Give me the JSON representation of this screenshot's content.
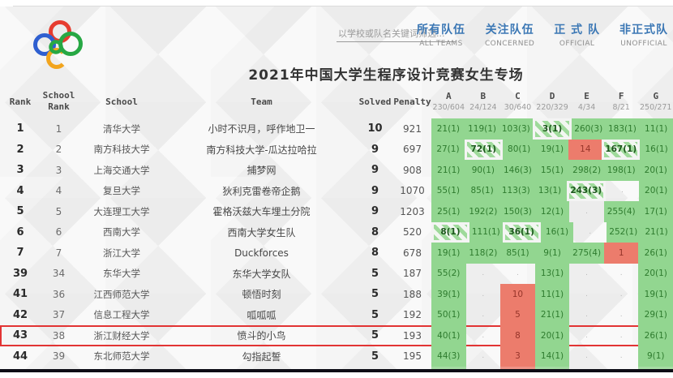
{
  "nav": {
    "search_placeholder": "以学校或队名关键词筛选...",
    "links": [
      {
        "zh": "所有队伍",
        "en": "ALL TEAMS"
      },
      {
        "zh": "关注队伍",
        "en": "CONCERNED"
      },
      {
        "zh": "正 式 队",
        "en": "OFFICIAL"
      },
      {
        "zh": "非正式队",
        "en": "UNOFFICIAL"
      }
    ]
  },
  "logo": {
    "name": "ccpc-rings-logo"
  },
  "title": "2021年中国大学生程序设计竞赛女生专场",
  "colors": {
    "accepted_green": "#92d690",
    "wrong_red": "#ec7c6c",
    "first_blood_stripe": "#9fda9b",
    "highlight_border": "#e23434",
    "link_blue": "#3c78b5",
    "logo_red": "#e63c2f",
    "logo_blue": "#2f5fd0",
    "logo_green": "#27a844",
    "logo_orange": "#f2a51e"
  },
  "table": {
    "headers": {
      "rank": "Rank",
      "school_rank": "School\nRank",
      "school": "School",
      "team": "Team",
      "solved": "Solved",
      "penalty": "Penalty"
    },
    "problems": [
      {
        "letter": "A",
        "stat": "230/604"
      },
      {
        "letter": "B",
        "stat": "24/124"
      },
      {
        "letter": "C",
        "stat": "30/640"
      },
      {
        "letter": "D",
        "stat": "220/329"
      },
      {
        "letter": "E",
        "stat": "4/34"
      },
      {
        "letter": "F",
        "stat": "8/21"
      },
      {
        "letter": "G",
        "stat": "250/271"
      }
    ],
    "rows": [
      {
        "rank": "1",
        "school_rank": "1",
        "school": "清华大学",
        "team": "小时不识月，呼作地卫一",
        "solved": "10",
        "penalty": "921",
        "cells": [
          {
            "t": "21(1)",
            "s": "ac"
          },
          {
            "t": "119(1)",
            "s": "ac"
          },
          {
            "t": "103(3)",
            "s": "ac"
          },
          {
            "t": "3(1)",
            "s": "fb"
          },
          {
            "t": "260(3)",
            "s": "ac"
          },
          {
            "t": "183(1)",
            "s": "ac"
          },
          {
            "t": "11(1)",
            "s": "ac"
          }
        ]
      },
      {
        "rank": "2",
        "school_rank": "2",
        "school": "南方科技大学",
        "team": "南方科技大学-瓜达拉哈拉",
        "solved": "9",
        "penalty": "697",
        "cells": [
          {
            "t": "27(1)",
            "s": "ac"
          },
          {
            "t": "72(1)",
            "s": "fb"
          },
          {
            "t": "80(1)",
            "s": "ac"
          },
          {
            "t": "19(1)",
            "s": "ac"
          },
          {
            "t": "14",
            "s": "wa"
          },
          {
            "t": "167(1)",
            "s": "fb"
          },
          {
            "t": "16(1)",
            "s": "ac"
          }
        ]
      },
      {
        "rank": "3",
        "school_rank": "3",
        "school": "上海交通大学",
        "team": "捕梦网",
        "solved": "9",
        "penalty": "908",
        "cells": [
          {
            "t": "21(1)",
            "s": "ac"
          },
          {
            "t": "90(1)",
            "s": "ac"
          },
          {
            "t": "146(3)",
            "s": "ac"
          },
          {
            "t": "15(1)",
            "s": "ac"
          },
          {
            "t": "298(2)",
            "s": "ac"
          },
          {
            "t": "198(1)",
            "s": "ac"
          },
          {
            "t": "20(1)",
            "s": "ac"
          }
        ]
      },
      {
        "rank": "4",
        "school_rank": "4",
        "school": "复旦大学",
        "team": "狄利克雷卷帝企鹅",
        "solved": "9",
        "penalty": "1070",
        "cells": [
          {
            "t": "55(1)",
            "s": "ac"
          },
          {
            "t": "85(1)",
            "s": "ac"
          },
          {
            "t": "113(3)",
            "s": "ac"
          },
          {
            "t": "13(1)",
            "s": "ac"
          },
          {
            "t": "243(3)",
            "s": "fb"
          },
          {
            "t": ".",
            "s": "none"
          },
          {
            "t": "20(1)",
            "s": "ac"
          }
        ]
      },
      {
        "rank": "5",
        "school_rank": "5",
        "school": "大连理工大学",
        "team": "霍格沃兹大车埋土分院",
        "solved": "9",
        "penalty": "1203",
        "cells": [
          {
            "t": "25(1)",
            "s": "ac"
          },
          {
            "t": "192(2)",
            "s": "ac"
          },
          {
            "t": "150(3)",
            "s": "ac"
          },
          {
            "t": "12(1)",
            "s": "ac"
          },
          {
            "t": ".",
            "s": "none"
          },
          {
            "t": "255(4)",
            "s": "ac"
          },
          {
            "t": "17(1)",
            "s": "ac"
          }
        ]
      },
      {
        "rank": "6",
        "school_rank": "6",
        "school": "西南大学",
        "team": "西南大学女生队",
        "solved": "8",
        "penalty": "520",
        "cells": [
          {
            "t": "8(1)",
            "s": "fb"
          },
          {
            "t": "111(1)",
            "s": "ac"
          },
          {
            "t": "36(1)",
            "s": "fb"
          },
          {
            "t": "16(1)",
            "s": "ac"
          },
          {
            "t": ".",
            "s": "none"
          },
          {
            "t": "252(1)",
            "s": "ac"
          },
          {
            "t": "21(1)",
            "s": "ac"
          }
        ]
      },
      {
        "rank": "7",
        "school_rank": "7",
        "school": "浙江大学",
        "team": "Duckforces",
        "solved": "8",
        "penalty": "678",
        "cells": [
          {
            "t": "19(1)",
            "s": "ac"
          },
          {
            "t": "118(2)",
            "s": "ac"
          },
          {
            "t": "85(1)",
            "s": "ac"
          },
          {
            "t": "9(1)",
            "s": "ac"
          },
          {
            "t": "275(4)",
            "s": "ac"
          },
          {
            "t": "1",
            "s": "wa"
          },
          {
            "t": "26(1)",
            "s": "ac"
          }
        ]
      },
      {
        "rank": "39",
        "school_rank": "34",
        "school": "东华大学",
        "team": "东华大学女队",
        "solved": "5",
        "penalty": "187",
        "cells": [
          {
            "t": "55(2)",
            "s": "ac"
          },
          {
            "t": ".",
            "s": "none"
          },
          {
            "t": ".",
            "s": "none"
          },
          {
            "t": "13(1)",
            "s": "ac"
          },
          {
            "t": ".",
            "s": "none"
          },
          {
            "t": ".",
            "s": "none"
          },
          {
            "t": "20(1)",
            "s": "ac"
          }
        ]
      },
      {
        "rank": "41",
        "school_rank": "36",
        "school": "江西师范大学",
        "team": "顿悟时刻",
        "solved": "5",
        "penalty": "188",
        "cells": [
          {
            "t": "39(1)",
            "s": "ac"
          },
          {
            "t": ".",
            "s": "none"
          },
          {
            "t": "10",
            "s": "wa"
          },
          {
            "t": "11(1)",
            "s": "ac"
          },
          {
            "t": ".",
            "s": "none"
          },
          {
            "t": ".",
            "s": "none"
          },
          {
            "t": "19(1)",
            "s": "ac"
          }
        ]
      },
      {
        "rank": "42",
        "school_rank": "37",
        "school": "信息工程大学",
        "team": "呱呱呱",
        "solved": "5",
        "penalty": "192",
        "cells": [
          {
            "t": "50(1)",
            "s": "ac"
          },
          {
            "t": ".",
            "s": "none"
          },
          {
            "t": "5",
            "s": "wa"
          },
          {
            "t": "21(1)",
            "s": "ac"
          },
          {
            "t": ".",
            "s": "none"
          },
          {
            "t": ".",
            "s": "none"
          },
          {
            "t": "29(1)",
            "s": "ac"
          }
        ]
      },
      {
        "rank": "43",
        "school_rank": "38",
        "school": "浙江财经大学",
        "team": "愤斗的小鸟",
        "solved": "5",
        "penalty": "193",
        "highlight": true,
        "cells": [
          {
            "t": "40(1)",
            "s": "ac"
          },
          {
            "t": ".",
            "s": "none"
          },
          {
            "t": "8",
            "s": "wa"
          },
          {
            "t": "20(1)",
            "s": "ac"
          },
          {
            "t": ".",
            "s": "none"
          },
          {
            "t": ".",
            "s": "none"
          },
          {
            "t": "26(1)",
            "s": "ac"
          }
        ]
      },
      {
        "rank": "44",
        "school_rank": "39",
        "school": "东北师范大学",
        "team": "勾指起誓",
        "solved": "5",
        "penalty": "195",
        "cells": [
          {
            "t": "44(3)",
            "s": "ac"
          },
          {
            "t": ".",
            "s": "none"
          },
          {
            "t": "3",
            "s": "wa"
          },
          {
            "t": "14(1)",
            "s": "ac"
          },
          {
            "t": ".",
            "s": "none"
          },
          {
            "t": ".",
            "s": "none"
          },
          {
            "t": "9(1)",
            "s": "ac"
          }
        ]
      },
      {
        "rank": "",
        "school_rank": "",
        "school": "",
        "team": "",
        "solved": "",
        "penalty": "",
        "partial": true,
        "cells": [
          {
            "t": "",
            "s": "ac"
          },
          {
            "t": "",
            "s": "none"
          },
          {
            "t": "",
            "s": "wa"
          },
          {
            "t": "",
            "s": "ac"
          },
          {
            "t": "",
            "s": "none"
          },
          {
            "t": "",
            "s": "none"
          },
          {
            "t": "",
            "s": "ac"
          }
        ]
      }
    ]
  }
}
